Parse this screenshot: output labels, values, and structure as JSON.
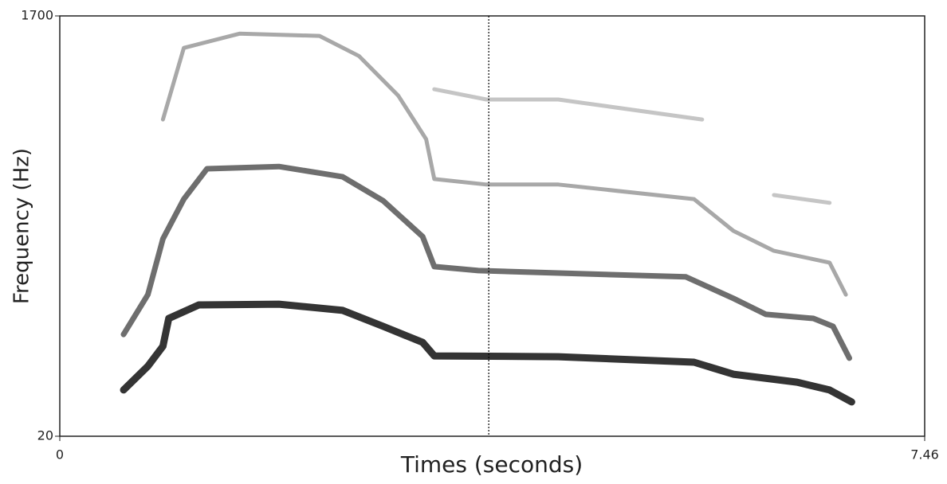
{
  "chart_data": {
    "type": "spectrogram",
    "x_label": "Times (seconds)",
    "y_label": "Frequency (Hz)",
    "xlim": [
      0,
      7.46
    ],
    "ylim": [
      20,
      1700
    ],
    "xticks": [
      0,
      7.46
    ],
    "yticks": [
      20,
      1700
    ],
    "cursor_x": 3.7,
    "series": [
      {
        "color": "#111111",
        "x": [
          0.55,
          0.76,
          0.89,
          0.94,
          1.2,
          1.89,
          2.44,
          2.79,
          3.13,
          3.23,
          4.3,
          5.47,
          5.81,
          6.36,
          6.64,
          6.83
        ],
        "values": [
          205,
          300,
          380,
          491,
          545,
          548,
          523,
          459,
          395,
          341,
          338,
          316,
          268,
          236,
          205,
          157
        ]
      },
      {
        "color": "#555555",
        "x": [
          0.55,
          0.76,
          0.89,
          1.07,
          1.27,
          1.89,
          2.44,
          2.79,
          3.13,
          3.23,
          3.61,
          5.4,
          5.81,
          6.09,
          6.5,
          6.67,
          6.81
        ],
        "values": [
          427,
          586,
          809,
          968,
          1089,
          1098,
          1057,
          961,
          818,
          698,
          682,
          657,
          571,
          507,
          491,
          459,
          332
        ]
      },
      {
        "color": "#999999",
        "x": [
          0.89,
          1.07,
          1.55,
          2.24,
          2.58,
          2.92,
          3.16,
          3.23,
          3.68,
          4.3,
          5.47,
          5.81,
          6.16,
          6.64,
          6.78
        ],
        "values": [
          1286,
          1572,
          1629,
          1620,
          1540,
          1381,
          1207,
          1048,
          1026,
          1026,
          968,
          841,
          761,
          714,
          586
        ]
      },
      {
        "color": "#bbbbbb",
        "x": [
          3.23,
          3.68,
          4.3,
          5.54,
          null,
          6.16,
          6.64
        ],
        "values": [
          1407,
          1366,
          1366,
          1286,
          null,
          984,
          953
        ]
      }
    ]
  }
}
